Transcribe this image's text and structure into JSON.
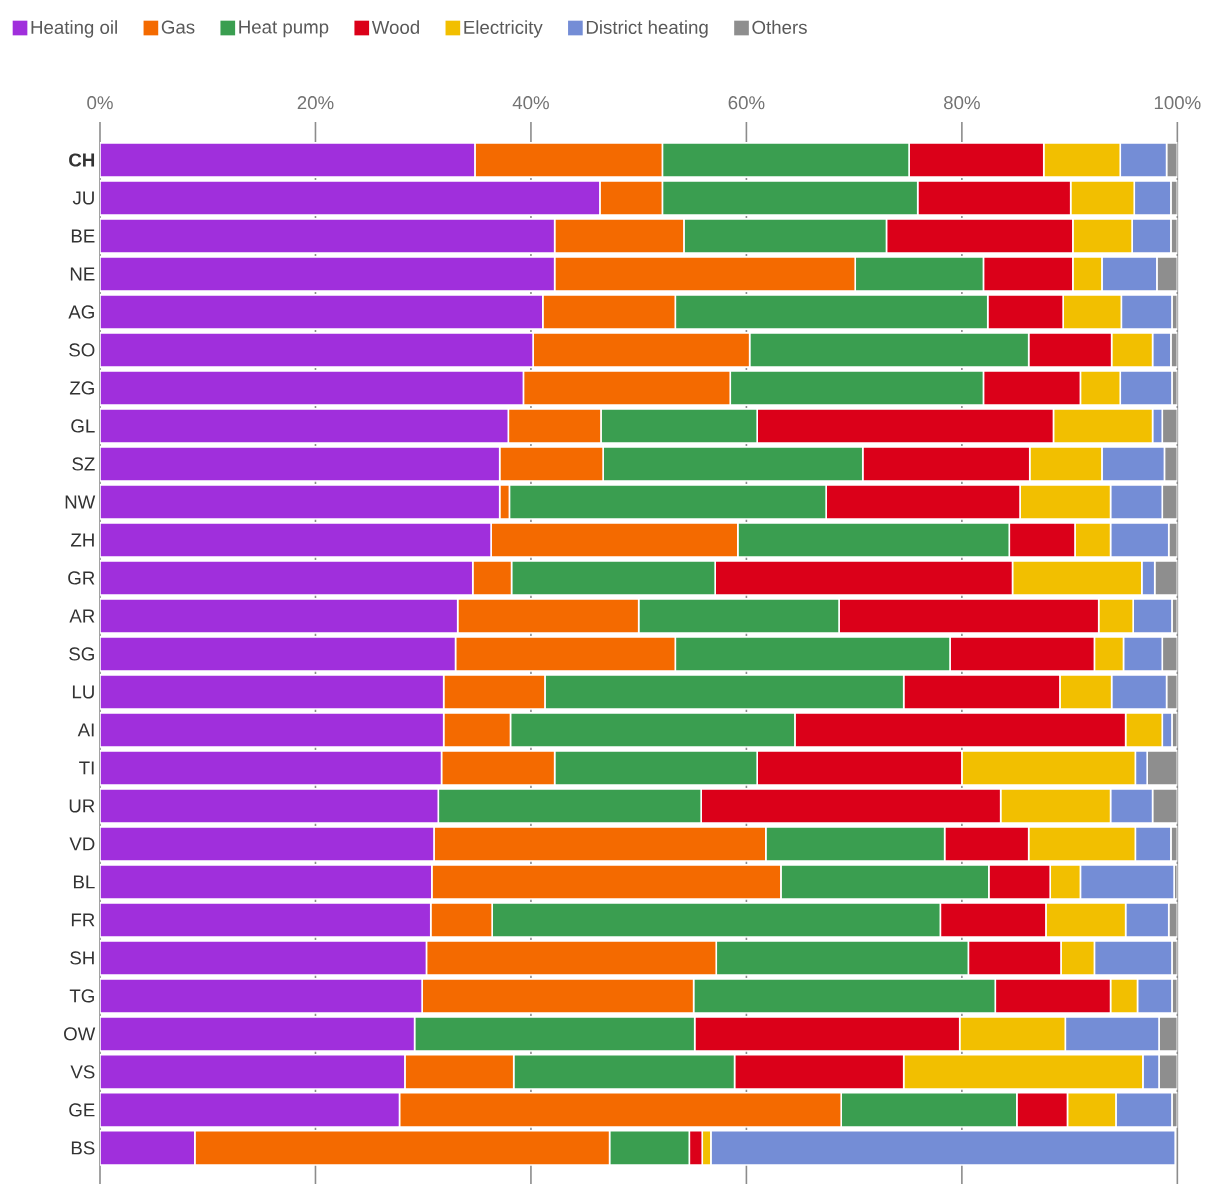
{
  "chart_data": {
    "type": "bar",
    "orientation": "horizontal",
    "stacked": true,
    "grid": "x",
    "legend": "top",
    "categories": [
      "**CH**",
      "JU",
      "BE",
      "NE",
      "AG",
      "SO",
      "ZG",
      "GL",
      "SZ",
      "NW",
      "ZH",
      "GR",
      "AR",
      "SG",
      "LU",
      "AI",
      "TI",
      "UR",
      "VD",
      "BL",
      "FR",
      "SH",
      "TG",
      "OW",
      "VS",
      "GE",
      "BS"
    ],
    "xlim": [
      0,
      100
    ],
    "xticks": [
      {
        "value": 0,
        "label": "0%"
      },
      {
        "value": 20,
        "label": "20%"
      },
      {
        "value": 40,
        "label": "40%"
      },
      {
        "value": 60,
        "label": "60%"
      },
      {
        "value": 80,
        "label": "80%"
      },
      {
        "value": 100,
        "label": "100%"
      }
    ],
    "series": [
      {
        "name": "Heating oil",
        "color": "#a02fdc",
        "values": [
          34.8,
          46.4,
          42.2,
          42.2,
          41.1,
          40.2,
          39.3,
          37.9,
          37.1,
          37.1,
          36.3,
          34.6,
          33.2,
          33.0,
          31.9,
          31.9,
          31.7,
          31.4,
          31.0,
          30.8,
          30.7,
          30.3,
          29.9,
          29.2,
          28.3,
          27.8,
          8.8
        ]
      },
      {
        "name": "Gas",
        "color": "#f46a00",
        "values": [
          17.4,
          5.8,
          12.0,
          27.9,
          12.3,
          20.1,
          19.2,
          8.6,
          9.6,
          0.9,
          22.9,
          3.6,
          16.8,
          20.4,
          9.4,
          6.2,
          10.5,
          0,
          30.8,
          32.4,
          5.7,
          26.9,
          25.2,
          0,
          10.1,
          41.0,
          38.5
        ]
      },
      {
        "name": "Heat pump",
        "color": "#3a9e50",
        "values": [
          22.9,
          23.7,
          18.8,
          11.9,
          29.0,
          25.9,
          23.5,
          14.5,
          24.1,
          29.4,
          25.2,
          18.9,
          18.6,
          25.5,
          33.3,
          26.4,
          18.8,
          24.4,
          16.6,
          19.3,
          41.6,
          23.4,
          28.0,
          26.0,
          20.5,
          16.3,
          7.4
        ]
      },
      {
        "name": "Wood",
        "color": "#db0019",
        "values": [
          12.5,
          14.2,
          17.3,
          8.3,
          7.0,
          7.7,
          9.0,
          27.5,
          15.5,
          18.0,
          6.1,
          27.6,
          24.1,
          13.4,
          14.5,
          30.7,
          19.0,
          27.8,
          7.8,
          5.7,
          9.8,
          8.6,
          10.7,
          24.6,
          15.7,
          4.7,
          1.2
        ]
      },
      {
        "name": "Electricity",
        "color": "#f2bf00",
        "values": [
          7.1,
          5.9,
          5.5,
          2.7,
          5.4,
          3.8,
          3.7,
          9.2,
          6.7,
          8.4,
          3.3,
          12.0,
          3.2,
          2.7,
          4.8,
          3.4,
          16.1,
          10.2,
          9.9,
          2.8,
          7.4,
          3.1,
          2.5,
          9.8,
          22.2,
          4.5,
          0.8
        ]
      },
      {
        "name": "District heating",
        "color": "#748dd6",
        "values": [
          4.3,
          3.4,
          3.6,
          5.1,
          4.7,
          1.7,
          4.8,
          0.9,
          5.8,
          4.8,
          5.4,
          1.2,
          3.6,
          3.6,
          5.1,
          0.9,
          1.1,
          3.9,
          3.3,
          8.7,
          4.0,
          7.2,
          3.2,
          8.7,
          1.5,
          5.2,
          43.1
        ]
      },
      {
        "name": "Others",
        "color": "#8e8e8e",
        "values": [
          1.0,
          0.6,
          0.6,
          1.9,
          0.5,
          0.6,
          0.5,
          1.4,
          1.2,
          1.4,
          0.8,
          2.1,
          0.5,
          1.4,
          1.0,
          0.5,
          2.8,
          2.3,
          0.6,
          0.3,
          0.8,
          0.5,
          0.5,
          1.7,
          1.7,
          0.5,
          null
        ]
      }
    ]
  }
}
